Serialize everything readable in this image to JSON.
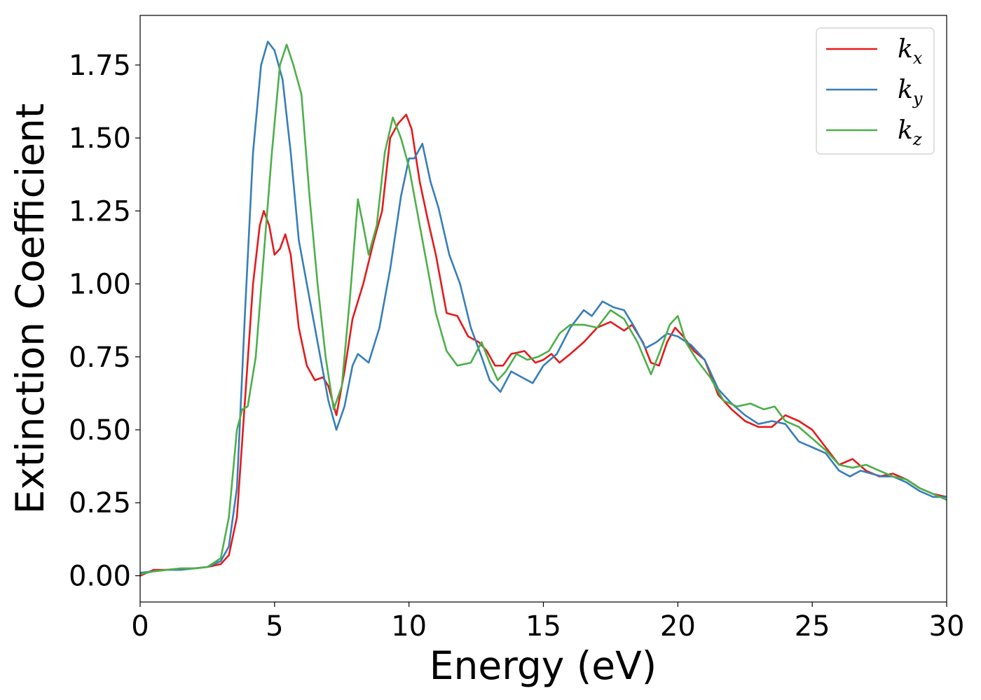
{
  "chart_data": {
    "type": "line",
    "xlabel": "Energy (eV)",
    "ylabel": "Extinction Coefficient",
    "xlim": [
      0,
      30
    ],
    "ylim": [
      -0.09,
      1.92
    ],
    "xticks": [
      0,
      5,
      10,
      15,
      20,
      25,
      30
    ],
    "yticks": [
      0.0,
      0.25,
      0.5,
      0.75,
      1.0,
      1.25,
      1.5,
      1.75
    ],
    "xtick_labels": [
      "0",
      "5",
      "10",
      "15",
      "20",
      "25",
      "30"
    ],
    "ytick_labels": [
      "0.00",
      "0.25",
      "0.50",
      "0.75",
      "1.00",
      "1.25",
      "1.50",
      "1.75"
    ],
    "grid": false,
    "legend_position": "top-right",
    "series": [
      {
        "name": "kx",
        "base": "k",
        "sub": "x",
        "color": "#e41a1c",
        "points": [
          [
            0,
            0.0
          ],
          [
            0.5,
            0.02
          ],
          [
            1,
            0.02
          ],
          [
            1.5,
            0.025
          ],
          [
            2,
            0.025
          ],
          [
            2.5,
            0.03
          ],
          [
            3,
            0.04
          ],
          [
            3.3,
            0.07
          ],
          [
            3.6,
            0.2
          ],
          [
            3.9,
            0.6
          ],
          [
            4.2,
            1.0
          ],
          [
            4.45,
            1.2
          ],
          [
            4.6,
            1.25
          ],
          [
            4.8,
            1.2
          ],
          [
            5,
            1.1
          ],
          [
            5.2,
            1.12
          ],
          [
            5.4,
            1.17
          ],
          [
            5.6,
            1.1
          ],
          [
            5.9,
            0.85
          ],
          [
            6.2,
            0.72
          ],
          [
            6.5,
            0.67
          ],
          [
            6.8,
            0.68
          ],
          [
            7.0,
            0.65
          ],
          [
            7.3,
            0.55
          ],
          [
            7.6,
            0.7
          ],
          [
            7.9,
            0.88
          ],
          [
            8.3,
            1.0
          ],
          [
            8.7,
            1.15
          ],
          [
            9.0,
            1.25
          ],
          [
            9.3,
            1.5
          ],
          [
            9.6,
            1.55
          ],
          [
            9.9,
            1.58
          ],
          [
            10.1,
            1.53
          ],
          [
            10.4,
            1.35
          ],
          [
            10.7,
            1.22
          ],
          [
            11.0,
            1.1
          ],
          [
            11.4,
            0.9
          ],
          [
            11.8,
            0.89
          ],
          [
            12.2,
            0.82
          ],
          [
            12.6,
            0.8
          ],
          [
            12.9,
            0.77
          ],
          [
            13.2,
            0.72
          ],
          [
            13.5,
            0.72
          ],
          [
            13.8,
            0.76
          ],
          [
            14.3,
            0.77
          ],
          [
            14.7,
            0.73
          ],
          [
            15.0,
            0.74
          ],
          [
            15.3,
            0.76
          ],
          [
            15.6,
            0.73
          ],
          [
            16.0,
            0.76
          ],
          [
            16.5,
            0.8
          ],
          [
            17.0,
            0.85
          ],
          [
            17.5,
            0.87
          ],
          [
            18.0,
            0.84
          ],
          [
            18.3,
            0.86
          ],
          [
            18.7,
            0.8
          ],
          [
            19.0,
            0.73
          ],
          [
            19.3,
            0.72
          ],
          [
            19.6,
            0.8
          ],
          [
            19.9,
            0.85
          ],
          [
            20.2,
            0.82
          ],
          [
            20.6,
            0.77
          ],
          [
            21.0,
            0.74
          ],
          [
            21.5,
            0.62
          ],
          [
            22.0,
            0.57
          ],
          [
            22.5,
            0.53
          ],
          [
            23.0,
            0.51
          ],
          [
            23.5,
            0.51
          ],
          [
            24.0,
            0.55
          ],
          [
            24.5,
            0.53
          ],
          [
            25.0,
            0.5
          ],
          [
            25.5,
            0.44
          ],
          [
            26.0,
            0.38
          ],
          [
            26.5,
            0.4
          ],
          [
            27.0,
            0.36
          ],
          [
            27.5,
            0.34
          ],
          [
            28.0,
            0.35
          ],
          [
            28.5,
            0.33
          ],
          [
            29.0,
            0.3
          ],
          [
            29.5,
            0.28
          ],
          [
            30.0,
            0.27
          ]
        ]
      },
      {
        "name": "ky",
        "base": "k",
        "sub": "y",
        "color": "#377eb8",
        "points": [
          [
            0,
            0.01
          ],
          [
            0.5,
            0.015
          ],
          [
            1,
            0.02
          ],
          [
            1.5,
            0.02
          ],
          [
            2,
            0.025
          ],
          [
            2.5,
            0.03
          ],
          [
            3,
            0.05
          ],
          [
            3.3,
            0.1
          ],
          [
            3.6,
            0.3
          ],
          [
            3.9,
            0.9
          ],
          [
            4.2,
            1.45
          ],
          [
            4.5,
            1.75
          ],
          [
            4.75,
            1.83
          ],
          [
            5.0,
            1.8
          ],
          [
            5.3,
            1.7
          ],
          [
            5.6,
            1.45
          ],
          [
            5.9,
            1.15
          ],
          [
            6.3,
            0.95
          ],
          [
            6.7,
            0.75
          ],
          [
            7.0,
            0.6
          ],
          [
            7.3,
            0.5
          ],
          [
            7.6,
            0.58
          ],
          [
            7.9,
            0.72
          ],
          [
            8.1,
            0.76
          ],
          [
            8.5,
            0.73
          ],
          [
            8.9,
            0.85
          ],
          [
            9.3,
            1.05
          ],
          [
            9.7,
            1.3
          ],
          [
            10.0,
            1.43
          ],
          [
            10.2,
            1.43
          ],
          [
            10.5,
            1.48
          ],
          [
            10.8,
            1.35
          ],
          [
            11.1,
            1.26
          ],
          [
            11.5,
            1.1
          ],
          [
            11.9,
            1.0
          ],
          [
            12.3,
            0.85
          ],
          [
            12.7,
            0.75
          ],
          [
            13.0,
            0.67
          ],
          [
            13.4,
            0.63
          ],
          [
            13.8,
            0.7
          ],
          [
            14.2,
            0.68
          ],
          [
            14.6,
            0.66
          ],
          [
            15.0,
            0.72
          ],
          [
            15.5,
            0.76
          ],
          [
            16.0,
            0.85
          ],
          [
            16.5,
            0.91
          ],
          [
            16.8,
            0.89
          ],
          [
            17.2,
            0.94
          ],
          [
            17.6,
            0.92
          ],
          [
            18.0,
            0.91
          ],
          [
            18.4,
            0.85
          ],
          [
            18.8,
            0.78
          ],
          [
            19.2,
            0.8
          ],
          [
            19.6,
            0.83
          ],
          [
            20.0,
            0.82
          ],
          [
            20.5,
            0.79
          ],
          [
            21.0,
            0.74
          ],
          [
            21.5,
            0.64
          ],
          [
            22.0,
            0.59
          ],
          [
            22.5,
            0.55
          ],
          [
            23.0,
            0.52
          ],
          [
            23.5,
            0.53
          ],
          [
            24.0,
            0.52
          ],
          [
            24.5,
            0.46
          ],
          [
            25.0,
            0.44
          ],
          [
            25.5,
            0.42
          ],
          [
            26.0,
            0.36
          ],
          [
            26.4,
            0.34
          ],
          [
            26.8,
            0.36
          ],
          [
            27.2,
            0.35
          ],
          [
            27.6,
            0.34
          ],
          [
            28.0,
            0.34
          ],
          [
            28.5,
            0.32
          ],
          [
            29.0,
            0.29
          ],
          [
            29.5,
            0.27
          ],
          [
            30.0,
            0.27
          ]
        ]
      },
      {
        "name": "kz",
        "base": "k",
        "sub": "z",
        "color": "#4daf4a",
        "points": [
          [
            0,
            0.005
          ],
          [
            0.5,
            0.015
          ],
          [
            1,
            0.02
          ],
          [
            1.5,
            0.025
          ],
          [
            2,
            0.025
          ],
          [
            2.5,
            0.03
          ],
          [
            3,
            0.06
          ],
          [
            3.3,
            0.2
          ],
          [
            3.6,
            0.5
          ],
          [
            3.8,
            0.57
          ],
          [
            4.0,
            0.58
          ],
          [
            4.3,
            0.75
          ],
          [
            4.6,
            1.1
          ],
          [
            4.9,
            1.45
          ],
          [
            5.2,
            1.75
          ],
          [
            5.45,
            1.82
          ],
          [
            5.7,
            1.75
          ],
          [
            6.0,
            1.65
          ],
          [
            6.3,
            1.3
          ],
          [
            6.6,
            1.0
          ],
          [
            6.9,
            0.75
          ],
          [
            7.2,
            0.57
          ],
          [
            7.5,
            0.65
          ],
          [
            7.8,
            0.95
          ],
          [
            8.1,
            1.29
          ],
          [
            8.3,
            1.2
          ],
          [
            8.5,
            1.1
          ],
          [
            8.8,
            1.2
          ],
          [
            9.1,
            1.45
          ],
          [
            9.4,
            1.57
          ],
          [
            9.7,
            1.5
          ],
          [
            10.0,
            1.4
          ],
          [
            10.3,
            1.25
          ],
          [
            10.6,
            1.1
          ],
          [
            11.0,
            0.9
          ],
          [
            11.4,
            0.77
          ],
          [
            11.8,
            0.72
          ],
          [
            12.3,
            0.73
          ],
          [
            12.7,
            0.8
          ],
          [
            13.0,
            0.73
          ],
          [
            13.3,
            0.67
          ],
          [
            13.6,
            0.7
          ],
          [
            14.0,
            0.76
          ],
          [
            14.4,
            0.74
          ],
          [
            14.8,
            0.75
          ],
          [
            15.2,
            0.77
          ],
          [
            15.6,
            0.83
          ],
          [
            16.0,
            0.86
          ],
          [
            16.5,
            0.86
          ],
          [
            17.0,
            0.85
          ],
          [
            17.5,
            0.91
          ],
          [
            18.0,
            0.88
          ],
          [
            18.5,
            0.8
          ],
          [
            19.0,
            0.69
          ],
          [
            19.3,
            0.76
          ],
          [
            19.7,
            0.86
          ],
          [
            20.0,
            0.89
          ],
          [
            20.3,
            0.8
          ],
          [
            20.7,
            0.74
          ],
          [
            21.2,
            0.68
          ],
          [
            21.7,
            0.6
          ],
          [
            22.2,
            0.58
          ],
          [
            22.7,
            0.59
          ],
          [
            23.2,
            0.57
          ],
          [
            23.6,
            0.58
          ],
          [
            24.0,
            0.53
          ],
          [
            24.5,
            0.51
          ],
          [
            25.0,
            0.47
          ],
          [
            25.5,
            0.43
          ],
          [
            26.0,
            0.38
          ],
          [
            26.5,
            0.37
          ],
          [
            27.0,
            0.38
          ],
          [
            27.5,
            0.36
          ],
          [
            28.0,
            0.34
          ],
          [
            28.5,
            0.33
          ],
          [
            29.0,
            0.3
          ],
          [
            29.5,
            0.28
          ],
          [
            30.0,
            0.26
          ]
        ]
      }
    ]
  }
}
